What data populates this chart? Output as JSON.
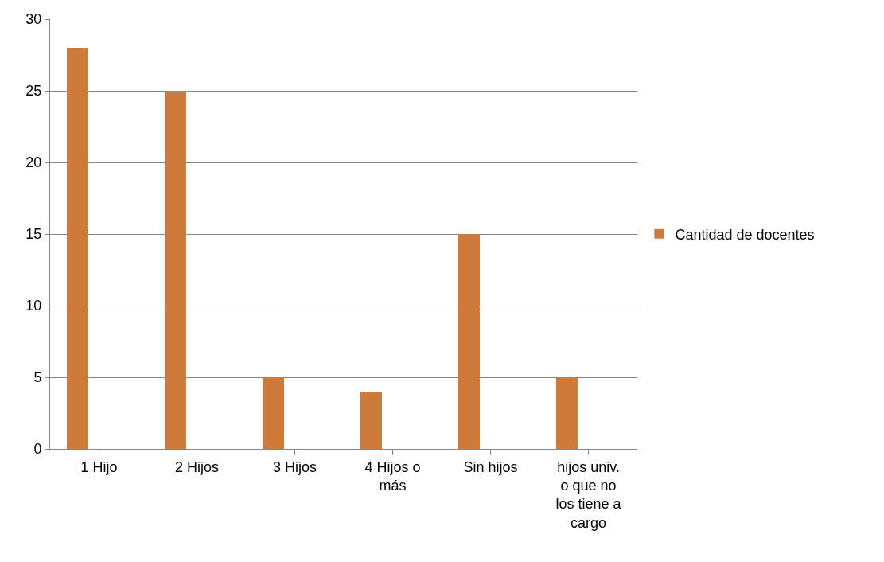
{
  "chart_data": {
    "type": "bar",
    "categories": [
      "1 Hijo",
      "2 Hijos",
      "3 Hijos",
      "4 Hijos o más",
      "Sin hijos",
      "hijos univ. o que no los tiene a cargo"
    ],
    "series": [
      {
        "name": "Cantidad de docentes",
        "color": "#cc7b3b",
        "values": [
          28,
          25,
          5,
          4,
          15,
          5
        ]
      }
    ],
    "ylim": [
      0,
      30
    ],
    "yticks": [
      0,
      5,
      10,
      15,
      20,
      25,
      30
    ],
    "grid": "y",
    "legend": "right"
  }
}
